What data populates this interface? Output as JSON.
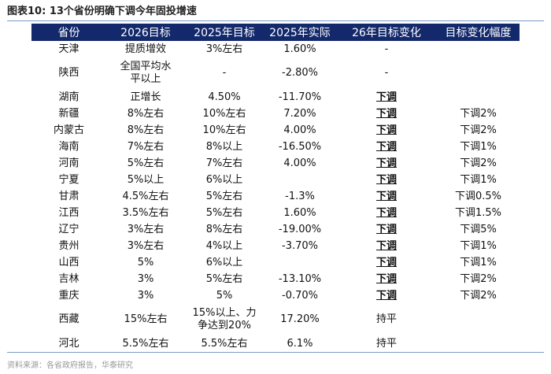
{
  "title": "图表10:  13个省份明确下调今年固投增速",
  "table": {
    "headers": [
      "省份",
      "2026目标",
      "2025年目标",
      "2025年实际",
      "26年目标变化",
      "目标变化幅度"
    ],
    "rows": [
      [
        "天津",
        "提质增效",
        "3%左右",
        "1.60%",
        "-",
        ""
      ],
      [
        "陕西",
        "全国平均水平以上",
        "-",
        "-2.80%",
        "-",
        ""
      ],
      [
        "湖南",
        "正增长",
        "4.50%",
        "-11.70%",
        "下调",
        ""
      ],
      [
        "新疆",
        "8%左右",
        "10%左右",
        "7.20%",
        "下调",
        "下调2%"
      ],
      [
        "内蒙古",
        "8%左右",
        "10%左右",
        "4.00%",
        "下调",
        "下调2%"
      ],
      [
        "海南",
        "7%左右",
        "8%以上",
        "-16.50%",
        "下调",
        "下调1%"
      ],
      [
        "河南",
        "5%左右",
        "7%左右",
        "4.00%",
        "下调",
        "下调2%"
      ],
      [
        "宁夏",
        "5%以上",
        "6%以上",
        "",
        "下调",
        "下调1%"
      ],
      [
        "甘肃",
        "4.5%左右",
        "5%左右",
        "-1.3%",
        "下调",
        "下调0.5%"
      ],
      [
        "江西",
        "3.5%左右",
        "5%左右",
        "1.60%",
        "下调",
        "下调1.5%"
      ],
      [
        "辽宁",
        "3%左右",
        "8%左右",
        "-19.00%",
        "下调",
        "下调5%"
      ],
      [
        "贵州",
        "3%左右",
        "4%以上",
        "-3.70%",
        "下调",
        "下调1%"
      ],
      [
        "山西",
        "5%",
        "6%以上",
        "",
        "下调",
        "下调1%"
      ],
      [
        "吉林",
        "3%",
        "5%左右",
        "-13.10%",
        "下调",
        "下调2%"
      ],
      [
        "重庆",
        "3%",
        "5%",
        "-0.70%",
        "下调",
        "下调2%"
      ],
      [
        "西藏",
        "15%左右",
        "15%以上、力争达到20%",
        "17.20%",
        "持平",
        ""
      ],
      [
        "河北",
        "5.5%左右",
        "5.5%左右",
        "6.1%",
        "持平",
        ""
      ]
    ]
  },
  "source": "资料来源：各省政府报告，华泰研究",
  "colors": {
    "header_bg": "#13296b",
    "rule": "#7a9cc8"
  }
}
